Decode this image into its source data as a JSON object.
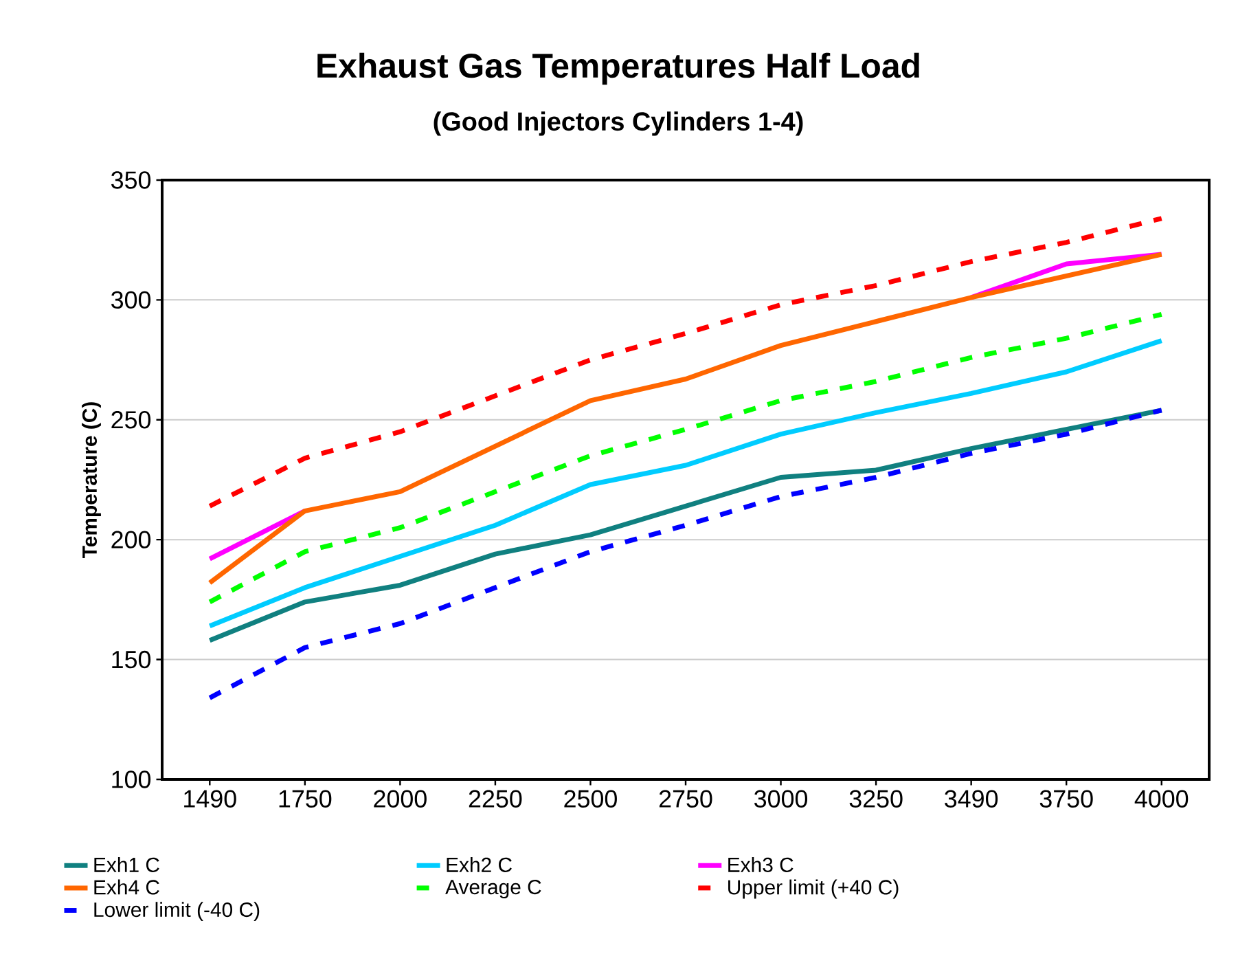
{
  "chart_data": {
    "type": "line",
    "title": "Exhaust Gas Temperatures Half Load",
    "subtitle": "(Good Injectors Cylinders 1-4)",
    "ylabel": "Temperature (C)",
    "categories": [
      "1490",
      "1750",
      "2000",
      "2250",
      "2500",
      "2750",
      "3000",
      "3250",
      "3490",
      "3750",
      "4000"
    ],
    "series": [
      {
        "name": "Exh1 C",
        "color": "#108080",
        "line_style": "solid",
        "values": [
          158,
          174,
          181,
          194,
          202,
          214,
          226,
          229,
          238,
          246,
          254
        ]
      },
      {
        "name": "Exh2 C",
        "color": "#00ccff",
        "line_style": "solid",
        "values": [
          164,
          180,
          193,
          206,
          223,
          231,
          244,
          253,
          261,
          270,
          283
        ]
      },
      {
        "name": "Exh3 C",
        "color": "#ff00ff",
        "line_style": "solid",
        "values": [
          192,
          212,
          null,
          null,
          null,
          null,
          null,
          null,
          301,
          315,
          319
        ]
      },
      {
        "name": "Exh4 C",
        "color": "#ff6600",
        "line_style": "solid",
        "values": [
          182,
          212,
          220,
          239,
          258,
          267,
          281,
          291,
          301,
          310,
          319
        ]
      },
      {
        "name": "Average C",
        "color": "#00ff00",
        "line_style": "dashed",
        "values": [
          174,
          195,
          205,
          220,
          235,
          246,
          258,
          266,
          276,
          284,
          294
        ]
      },
      {
        "name": "Upper limit (+40 C)",
        "color": "#ff0000",
        "line_style": "dashed",
        "values": [
          214,
          234,
          245,
          260,
          275,
          286,
          298,
          306,
          316,
          324,
          334
        ]
      },
      {
        "name": "Lower limit (-40 C)",
        "color": "#0000ff",
        "line_style": "dashed",
        "values": [
          134,
          155,
          165,
          180,
          195,
          206,
          218,
          226,
          236,
          244,
          254
        ]
      }
    ],
    "ylim": [
      100,
      350
    ],
    "yticks": [
      100,
      150,
      200,
      250,
      300,
      350
    ],
    "grid": "y",
    "legend": "bottom"
  }
}
